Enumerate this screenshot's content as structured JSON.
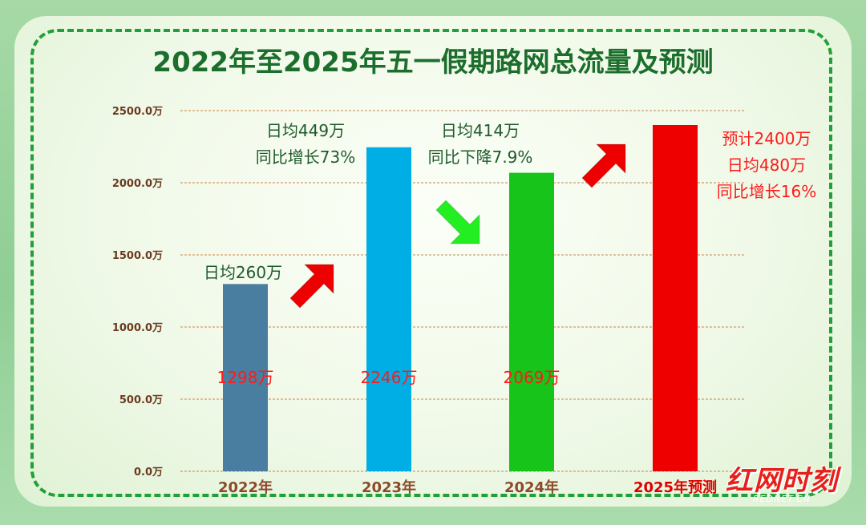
{
  "title": "2022年至2025年五一假期路网总流量及预测",
  "chart_data": {
    "type": "bar",
    "title": "2022年至2025年五一假期路网总流量及预测",
    "categories": [
      "2022年",
      "2023年",
      "2024年",
      "2025年预测"
    ],
    "values": [
      1298,
      2246,
      2069,
      2400
    ],
    "value_labels": [
      "1298万",
      "2246万",
      "2069万",
      ""
    ],
    "bar_colors": [
      "#4a7ea0",
      "#00aee6",
      "#16c41a",
      "#ee0000"
    ],
    "ylim": [
      0,
      2500
    ],
    "yticks": [
      0,
      500,
      1000,
      1500,
      2000,
      2500
    ],
    "ytick_labels": [
      "0.0万",
      "500.0万",
      "1000.0万",
      "1500.0万",
      "2000.0万",
      "2500.0万"
    ],
    "grid": true,
    "annotations": [
      {
        "lines": [
          "日均260万"
        ],
        "color": "#1f5a2a"
      },
      {
        "lines": [
          "日均449万",
          "同比增长73%"
        ],
        "color": "#1f5a2a"
      },
      {
        "lines": [
          "日均414万",
          "同比下降7.9%"
        ],
        "color": "#1f5a2a"
      },
      {
        "lines": [
          "预计2400万",
          "日均480万",
          "同比增长16%"
        ],
        "color": "#ff1a1a"
      }
    ],
    "arrows": [
      {
        "direction": "up",
        "color": "#ee0000"
      },
      {
        "direction": "down",
        "color": "#22ee22"
      },
      {
        "direction": "up",
        "color": "#ee0000"
      }
    ]
  },
  "logo": {
    "text": "红网时刻",
    "sub": "REDNET.CN"
  }
}
